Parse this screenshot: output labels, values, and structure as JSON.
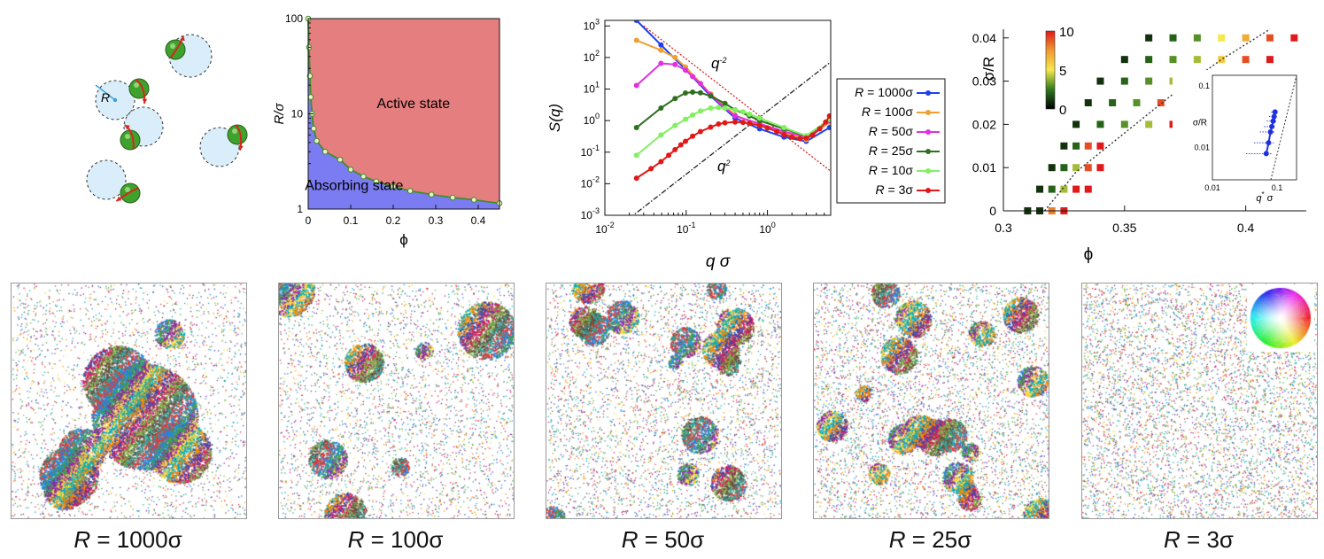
{
  "schematic": {
    "radius_label": "R",
    "colors": {
      "disk": "#d9eefa",
      "particle": "#3fa22c",
      "arrow": "#d8261c",
      "radius": "#3aa0d8"
    }
  },
  "chart_data": [
    {
      "id": "phase-diagram",
      "type": "area",
      "xlabel": "ϕ",
      "ylabel": "R/σ",
      "xlim": [
        0,
        0.45
      ],
      "ylim": [
        1,
        100
      ],
      "y_scale": "log",
      "x_ticks": [
        "0",
        "0.1",
        "0.2",
        "0.3",
        "0.4"
      ],
      "y_ticks": [
        "1",
        "10",
        "100"
      ],
      "regions": [
        {
          "label": "Active state",
          "color": "#e57e7e",
          "position": "above-curve"
        },
        {
          "label": "Absorbing state",
          "color": "#7b7bf2",
          "position": "below-curve"
        }
      ],
      "boundary": {
        "color": "#3f8f2a",
        "marker_fill": "#eef2c8",
        "x": [
          0.0,
          0.002,
          0.004,
          0.006,
          0.009,
          0.013,
          0.02,
          0.04,
          0.075,
          0.1,
          0.13,
          0.16,
          0.2,
          0.24,
          0.29,
          0.34,
          0.39,
          0.45
        ],
        "y": [
          100,
          50,
          25,
          15,
          10,
          7,
          5.2,
          4.0,
          3.3,
          2.6,
          2.2,
          1.95,
          1.72,
          1.55,
          1.42,
          1.32,
          1.25,
          1.15
        ]
      }
    },
    {
      "id": "structure-factor",
      "type": "line",
      "xlabel": "q σ",
      "ylabel": "S(q)",
      "x_scale": "log",
      "y_scale": "log",
      "xlim": [
        0.01,
        6
      ],
      "ylim": [
        0.001,
        1500
      ],
      "x_ticks": [
        "10^-2",
        "10^-1",
        "10^0"
      ],
      "y_ticks": [
        "10^-3",
        "10^-2",
        "10^-1",
        "10^0",
        "10^1",
        "10^2",
        "10^3"
      ],
      "annotations": [
        {
          "text": "q^-2",
          "style": "dotted",
          "color": "#d82020"
        },
        {
          "text": "q^2",
          "style": "dash-dot",
          "color": "#222222"
        }
      ],
      "guides": [
        {
          "name": "q^-2",
          "x": [
            0.03,
            6
          ],
          "y": [
            1000,
            0.025
          ]
        },
        {
          "name": "q^2",
          "x": [
            0.02,
            6
          ],
          "y": [
            0.0008,
            72
          ]
        }
      ],
      "legend_position": "right-outside",
      "series": [
        {
          "name": "R = 1000σ",
          "color": "#1e3ff0",
          "x": [
            0.0245,
            0.049,
            0.1,
            0.2,
            0.4,
            0.8,
            1.6,
            3.0,
            5.8
          ],
          "y": [
            1500,
            250,
            40,
            6,
            1.2,
            0.55,
            0.3,
            0.22,
            0.6
          ]
        },
        {
          "name": "R = 100σ",
          "color": "#f0a030",
          "x": [
            0.0245,
            0.049,
            0.073,
            0.098,
            0.2,
            0.4,
            0.8,
            1.6,
            3.0,
            5.8
          ],
          "y": [
            350,
            170,
            100,
            50,
            7,
            1.5,
            0.7,
            0.4,
            0.25,
            0.9
          ]
        },
        {
          "name": "R = 50σ",
          "color": "#e030e0",
          "x": [
            0.0245,
            0.049,
            0.073,
            0.098,
            0.12,
            0.15,
            0.2,
            0.3,
            0.4,
            0.8,
            1.6,
            3.0,
            5.8
          ],
          "y": [
            13,
            65,
            60,
            40,
            25,
            15,
            6.5,
            2.5,
            1.4,
            0.8,
            0.45,
            0.3,
            1.0
          ]
        },
        {
          "name": "R = 25σ",
          "color": "#2f6f1f",
          "x": [
            0.0245,
            0.049,
            0.073,
            0.098,
            0.12,
            0.15,
            0.2,
            0.3,
            0.4,
            0.6,
            0.8,
            1.6,
            3.0,
            5.8
          ],
          "y": [
            0.6,
            2.5,
            5.0,
            7.5,
            8.0,
            7.6,
            6.0,
            3.5,
            2.2,
            1.4,
            1.0,
            0.55,
            0.32,
            1.1
          ]
        },
        {
          "name": "R = 10σ",
          "color": "#80f060",
          "x": [
            0.0245,
            0.049,
            0.073,
            0.098,
            0.12,
            0.15,
            0.2,
            0.25,
            0.3,
            0.4,
            0.5,
            0.6,
            0.8,
            1.6,
            3.0,
            5.8
          ],
          "y": [
            0.08,
            0.35,
            0.7,
            1.1,
            1.5,
            2.0,
            2.5,
            2.6,
            2.5,
            2.2,
            1.9,
            1.6,
            1.2,
            0.6,
            0.33,
            1.1
          ]
        },
        {
          "name": "R = 3σ",
          "color": "#e01818",
          "x": [
            0.0245,
            0.037,
            0.049,
            0.061,
            0.073,
            0.086,
            0.098,
            0.12,
            0.15,
            0.2,
            0.25,
            0.3,
            0.4,
            0.5,
            0.6,
            0.8,
            1.0,
            1.3,
            1.6,
            2.0,
            2.5,
            3.0,
            3.6,
            4.4,
            5.2,
            5.8
          ],
          "y": [
            0.015,
            0.03,
            0.05,
            0.08,
            0.12,
            0.17,
            0.22,
            0.32,
            0.45,
            0.62,
            0.78,
            0.85,
            0.9,
            0.88,
            0.82,
            0.7,
            0.58,
            0.45,
            0.36,
            0.3,
            0.27,
            0.28,
            0.35,
            0.55,
            0.9,
            1.4
          ]
        }
      ]
    },
    {
      "id": "sigma-over-r",
      "type": "scatter",
      "xlabel": "ϕ",
      "ylabel": "σ/R",
      "xlim": [
        0.3,
        0.425
      ],
      "ylim": [
        0,
        0.042
      ],
      "x_ticks": [
        "0.3",
        "0.35",
        "0.4"
      ],
      "y_ticks": [
        "0",
        "0.01",
        "0.02",
        "0.03",
        "0.04"
      ],
      "colorbar": {
        "min": 0,
        "max": 10,
        "ticks": [
          "0",
          "5",
          "10"
        ],
        "colors": [
          "#000000",
          "#2f7a1e",
          "#f6e84a",
          "#f09a30",
          "#e01a1a"
        ]
      },
      "boundary_line": {
        "style": "dotted",
        "x": [
          0.317,
          0.33,
          0.35,
          0.37,
          0.39,
          0.41
        ],
        "y": [
          0,
          0.009,
          0.018,
          0.027,
          0.035,
          0.044
        ]
      },
      "points": {
        "rows": [
          {
            "y": 0.0,
            "x": [
              0.31,
              0.315,
              0.32,
              0.325
            ],
            "v": [
              1,
              1,
              8,
              10
            ]
          },
          {
            "y": 0.005,
            "x": [
              0.315,
              0.32,
              0.325,
              0.33,
              0.335
            ],
            "v": [
              1,
              2,
              4,
              10,
              10
            ]
          },
          {
            "y": 0.01,
            "x": [
              0.32,
              0.325,
              0.33,
              0.335,
              0.34
            ],
            "v": [
              1,
              2,
              4,
              9,
              10
            ]
          },
          {
            "y": 0.015,
            "x": [
              0.325,
              0.33,
              0.335,
              0.34
            ],
            "v": [
              1,
              2,
              9,
              10
            ]
          },
          {
            "y": 0.02,
            "x": [
              0.33,
              0.34,
              0.35,
              0.36,
              0.37,
              0.38
            ],
            "v": [
              1,
              2,
              3,
              4,
              10,
              10
            ]
          },
          {
            "y": 0.025,
            "x": [
              0.335,
              0.345,
              0.355,
              0.365,
              0.375,
              0.385
            ],
            "v": [
              1,
              2,
              3,
              9,
              10,
              10
            ]
          },
          {
            "y": 0.03,
            "x": [
              0.34,
              0.35,
              0.36,
              0.37,
              0.38,
              0.39
            ],
            "v": [
              1,
              2,
              3,
              4,
              9,
              10
            ]
          },
          {
            "y": 0.035,
            "x": [
              0.35,
              0.36,
              0.37,
              0.38,
              0.39,
              0.4,
              0.41
            ],
            "v": [
              1,
              2,
              3,
              4,
              6,
              9,
              10
            ]
          },
          {
            "y": 0.04,
            "x": [
              0.36,
              0.37,
              0.38,
              0.39,
              0.4,
              0.41,
              0.42
            ],
            "v": [
              1,
              2,
              3,
              5,
              7,
              9,
              10
            ]
          }
        ]
      },
      "inset": {
        "xlabel": "q* σ",
        "ylabel": "σ/R",
        "x_scale": "log",
        "y_scale": "log",
        "xlim": [
          0.01,
          0.2
        ],
        "ylim": [
          0.003,
          0.15
        ],
        "x_ticks": [
          "0.01",
          "0.1"
        ],
        "y_ticks": [
          "0.01",
          "0.1"
        ],
        "color": "#2030e0",
        "x": [
          0.068,
          0.074,
          0.079,
          0.083,
          0.087,
          0.09,
          0.093
        ],
        "y": [
          0.008,
          0.012,
          0.018,
          0.022,
          0.027,
          0.032,
          0.038
        ],
        "xerr": [
          0.035,
          0.03,
          0.025,
          0.02,
          0.018,
          0.015,
          0.012
        ]
      }
    }
  ],
  "snapshots": [
    {
      "caption_var": "R",
      "caption_rest": " = 1000σ",
      "clustering": 1.0
    },
    {
      "caption_var": "R",
      "caption_rest": " = 100σ",
      "clustering": 0.75
    },
    {
      "caption_var": "R",
      "caption_rest": " = 50σ",
      "clustering": 0.5
    },
    {
      "caption_var": "R",
      "caption_rest": " = 25σ",
      "clustering": 0.28
    },
    {
      "caption_var": "R",
      "caption_rest": " = 3σ",
      "clustering": 0.0
    }
  ]
}
